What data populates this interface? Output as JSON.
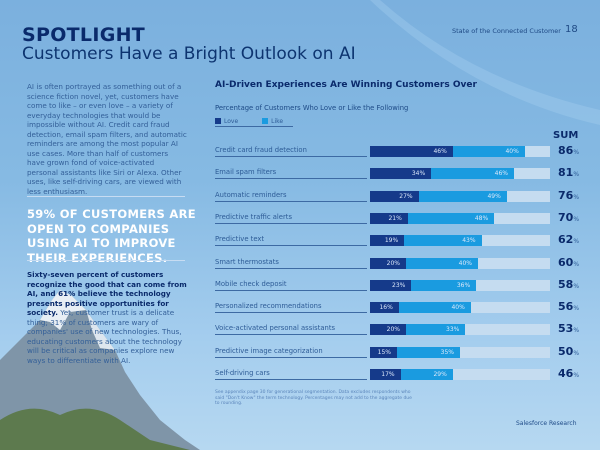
{
  "header": {
    "kicker": "SPOTLIGHT",
    "title": "Customers Have a Bright Outlook on AI",
    "doc_title": "State of the Connected Customer",
    "page": "18"
  },
  "left": {
    "intro": "AI is often portrayed as something out of a science fiction novel, yet, customers have come to like – or even love – a variety of everyday technologies that would be impossible without AI. Credit card fraud detection, email spam filters, and automatic reminders are among the most popular AI use cases. More than half of customers have grown fond of voice-activated personal assistants like Siri or Alexa. Other uses, like self-driving cars, are viewed with less enthusiasm.",
    "callout": "59% OF CUSTOMERS ARE OPEN TO COMPANIES USING AI TO IMPROVE THEIR EXPERIENCES.",
    "para_bold": "Sixty-seven percent of customers recognize the good that can come from AI, and 61% believe the technology presents positive opportunities for society.",
    "para_rest": " Yet, customer trust is a delicate thing; 31% of customers are wary of companies' use of new technologies. Thus, educating customers about the technology will be critical as companies explore new ways to differentiate with AI."
  },
  "chart_data": {
    "type": "bar",
    "stacked": true,
    "orientation": "horizontal",
    "title": "AI-Driven Experiences Are Winning Customers Over",
    "subtitle": "Percentage of Customers Who Love or Like the Following",
    "sum_header": "SUM",
    "unit": "%",
    "xlim": [
      0,
      100
    ],
    "legend": "top-left",
    "colors": {
      "Love": "#153a8a",
      "Like": "#1a9be0",
      "track": "#c5dcf0"
    },
    "categories": [
      "Credit card fraud detection",
      "Email spam filters",
      "Automatic reminders",
      "Predictive traffic alerts",
      "Predictive text",
      "Smart thermostats",
      "Mobile check deposit",
      "Personalized recommendations",
      "Voice-activated personal assistants",
      "Predictive image categorization",
      "Self-driving cars"
    ],
    "series": [
      {
        "name": "Love",
        "values": [
          46,
          34,
          27,
          21,
          19,
          20,
          23,
          16,
          20,
          15,
          17
        ]
      },
      {
        "name": "Like",
        "values": [
          40,
          46,
          49,
          48,
          43,
          40,
          36,
          40,
          33,
          35,
          29
        ]
      }
    ],
    "sums": [
      86,
      81,
      76,
      70,
      62,
      60,
      58,
      56,
      53,
      50,
      46
    ]
  },
  "footnote": "See appendix page 30 for generational segmentation. Data excludes respondents who said \"Don't Know\" the term technology. Percentages may not add to the aggregate due to rounding.",
  "brand": "Salesforce Research"
}
